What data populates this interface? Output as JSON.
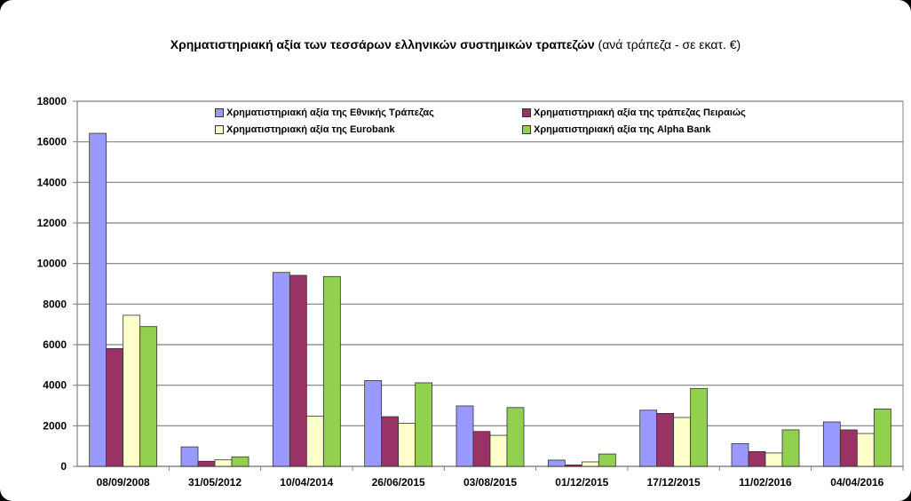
{
  "chart_data": {
    "type": "bar",
    "title": "Χρηματιστηριακή  αξία των τεσσάρων ελληνικών συστημικών τραπεζών",
    "subtitle": "(ανά τράπεζα - σε εκατ. €)",
    "xlabel": "",
    "ylabel": "",
    "ylim": [
      0,
      18000
    ],
    "yticks": [
      0,
      2000,
      4000,
      6000,
      8000,
      10000,
      12000,
      14000,
      16000,
      18000
    ],
    "grid": true,
    "legend_position": "top",
    "categories": [
      "08/09/2008",
      "31/05/2012",
      "10/04/2014",
      "26/06/2015",
      "03/08/2015",
      "01/12/2015",
      "17/12/2015",
      "11/02/2016",
      "04/04/2016"
    ],
    "series": [
      {
        "name": "Χρηματιστηριακή  αξία της Εθνικής Τράπεζας",
        "color": "#9999ff",
        "values": [
          16420,
          960,
          9560,
          4230,
          2980,
          310,
          2770,
          1120,
          2190
        ]
      },
      {
        "name": "Χρηματιστηριακή  αξία της τράπεζας Πειραιώς",
        "color": "#993366",
        "values": [
          5810,
          250,
          9420,
          2450,
          1720,
          70,
          2610,
          730,
          1800
        ]
      },
      {
        "name": "Χρηματιστηριακή  αξία της Eurobank",
        "color": "#ffffcc",
        "values": [
          7450,
          320,
          2480,
          2120,
          1530,
          220,
          2410,
          660,
          1620
        ]
      },
      {
        "name": "Χρηματιστηριακή  αξία της Alpha Bank",
        "color": "#92d050",
        "values": [
          6890,
          470,
          9360,
          4120,
          2900,
          610,
          3840,
          1800,
          2830
        ]
      }
    ]
  }
}
